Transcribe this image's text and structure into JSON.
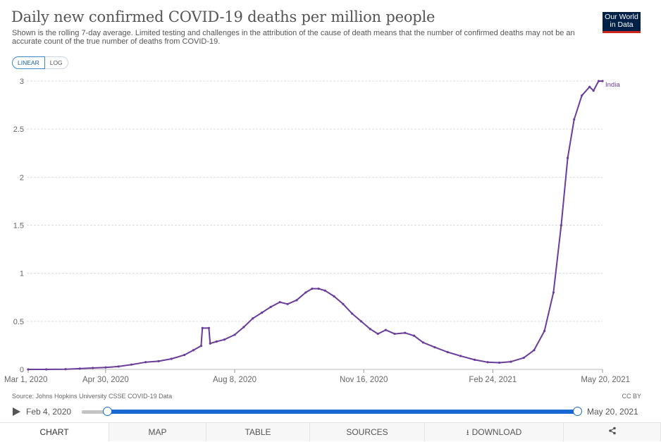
{
  "header": {
    "title": "Daily new confirmed COVID-19 deaths per million people",
    "subtitle": "Shown is the rolling 7-day average. Limited testing and challenges in the attribution of the cause of death means that the number of confirmed deaths may not be an accurate count of the true number of deaths from COVID-19.",
    "logo_line1": "Our World",
    "logo_line2": "in Data"
  },
  "scale_toggle": {
    "linear_label": "LINEAR",
    "log_label": "LOG",
    "selected": "LINEAR"
  },
  "chart_data": {
    "type": "line",
    "title": "Daily new confirmed COVID-19 deaths per million people",
    "xlabel": "",
    "ylabel": "",
    "x_range": [
      "2020-03-01",
      "2021-05-20"
    ],
    "ylim": [
      0,
      3
    ],
    "y_ticks": [
      0,
      0.5,
      1,
      1.5,
      2,
      2.5,
      3
    ],
    "y_tick_labels": [
      "0",
      "0.5",
      "1",
      "1.5",
      "2",
      "2.5",
      "3"
    ],
    "x_tick_labels": [
      "Mar 1, 2020",
      "Apr 30, 2020",
      "Aug 8, 2020",
      "Nov 16, 2020",
      "Feb 24, 2021",
      "May 20, 2021"
    ],
    "x_tick_dates": [
      "2020-03-01",
      "2020-04-30",
      "2020-08-08",
      "2020-11-16",
      "2021-02-24",
      "2021-05-20"
    ],
    "grid": true,
    "series_color": "#6a3d9a",
    "series": [
      {
        "name": "India",
        "points": [
          [
            "2020-03-01",
            0.0
          ],
          [
            "2020-03-15",
            0.0
          ],
          [
            "2020-03-30",
            0.002
          ],
          [
            "2020-04-10",
            0.008
          ],
          [
            "2020-04-20",
            0.015
          ],
          [
            "2020-04-30",
            0.02
          ],
          [
            "2020-05-10",
            0.03
          ],
          [
            "2020-05-20",
            0.05
          ],
          [
            "2020-05-31",
            0.075
          ],
          [
            "2020-06-10",
            0.085
          ],
          [
            "2020-06-20",
            0.11
          ],
          [
            "2020-06-30",
            0.15
          ],
          [
            "2020-07-07",
            0.2
          ],
          [
            "2020-07-13",
            0.245
          ],
          [
            "2020-07-14",
            0.43
          ],
          [
            "2020-07-19",
            0.43
          ],
          [
            "2020-07-20",
            0.27
          ],
          [
            "2020-07-25",
            0.29
          ],
          [
            "2020-07-31",
            0.31
          ],
          [
            "2020-08-08",
            0.36
          ],
          [
            "2020-08-15",
            0.44
          ],
          [
            "2020-08-22",
            0.53
          ],
          [
            "2020-08-29",
            0.59
          ],
          [
            "2020-09-05",
            0.65
          ],
          [
            "2020-09-12",
            0.7
          ],
          [
            "2020-09-18",
            0.68
          ],
          [
            "2020-09-25",
            0.72
          ],
          [
            "2020-10-02",
            0.8
          ],
          [
            "2020-10-07",
            0.84
          ],
          [
            "2020-10-12",
            0.84
          ],
          [
            "2020-10-17",
            0.82
          ],
          [
            "2020-10-24",
            0.76
          ],
          [
            "2020-10-31",
            0.68
          ],
          [
            "2020-11-07",
            0.58
          ],
          [
            "2020-11-14",
            0.5
          ],
          [
            "2020-11-21",
            0.42
          ],
          [
            "2020-11-27",
            0.37
          ],
          [
            "2020-12-03",
            0.41
          ],
          [
            "2020-12-10",
            0.37
          ],
          [
            "2020-12-18",
            0.38
          ],
          [
            "2020-12-25",
            0.35
          ],
          [
            "2021-01-01",
            0.28
          ],
          [
            "2021-01-10",
            0.23
          ],
          [
            "2021-01-20",
            0.18
          ],
          [
            "2021-01-30",
            0.14
          ],
          [
            "2021-02-10",
            0.1
          ],
          [
            "2021-02-20",
            0.075
          ],
          [
            "2021-03-01",
            0.07
          ],
          [
            "2021-03-10",
            0.08
          ],
          [
            "2021-03-20",
            0.12
          ],
          [
            "2021-03-28",
            0.2
          ],
          [
            "2021-04-05",
            0.4
          ],
          [
            "2021-04-12",
            0.8
          ],
          [
            "2021-04-18",
            1.5
          ],
          [
            "2021-04-23",
            2.2
          ],
          [
            "2021-04-28",
            2.6
          ],
          [
            "2021-05-04",
            2.85
          ],
          [
            "2021-05-10",
            2.94
          ],
          [
            "2021-05-13",
            2.9
          ],
          [
            "2021-05-17",
            3.0
          ],
          [
            "2021-05-20",
            3.0
          ]
        ]
      }
    ]
  },
  "footer": {
    "source": "Source: Johns Hopkins University CSSE COVID-19 Data",
    "license": "CC BY"
  },
  "timeline": {
    "start_label": "Feb 4, 2020",
    "end_label": "May 20, 2021"
  },
  "tabs": {
    "chart": "CHART",
    "map": "MAP",
    "table": "TABLE",
    "sources": "SOURCES",
    "download": "DOWNLOAD"
  },
  "icons": {
    "play": "play-icon",
    "download": "download-icon",
    "share": "share-icon"
  }
}
